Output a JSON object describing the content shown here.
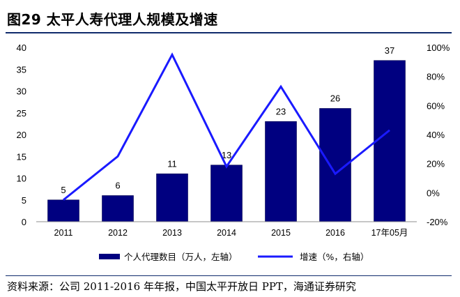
{
  "title": "图29 太平人寿代理人规模及增速",
  "source": "资料来源：公司 2011-2016 年年报，中国太平开放日 PPT，海通证券研究",
  "colors": {
    "bar": "#000080",
    "line": "#1a1aff",
    "rule": "#0f2a6b"
  },
  "chart_data": {
    "type": "bar",
    "categories": [
      "2011",
      "2012",
      "2013",
      "2014",
      "2015",
      "2016",
      "17年05月"
    ],
    "series": [
      {
        "name": "个人代理数目（万人，左轴）",
        "type": "bar",
        "axis": "left",
        "values": [
          5,
          6,
          11,
          13,
          23,
          26,
          37
        ]
      },
      {
        "name": "增速（%，右轴）",
        "type": "line",
        "axis": "right",
        "values": [
          -5,
          25,
          95,
          18,
          73,
          13,
          43
        ]
      }
    ],
    "left_axis": {
      "min": 0,
      "max": 40,
      "step": 5,
      "ticks": [
        "0",
        "5",
        "10",
        "15",
        "20",
        "25",
        "30",
        "35",
        "40"
      ]
    },
    "right_axis": {
      "min": -20,
      "max": 100,
      "step": 20,
      "ticks": [
        "-20%",
        "0%",
        "20%",
        "40%",
        "60%",
        "80%",
        "100%"
      ]
    },
    "data_labels": [
      "5",
      "6",
      "11",
      "13",
      "23",
      "26",
      "37"
    ],
    "legend_position": "bottom",
    "grid": false
  }
}
